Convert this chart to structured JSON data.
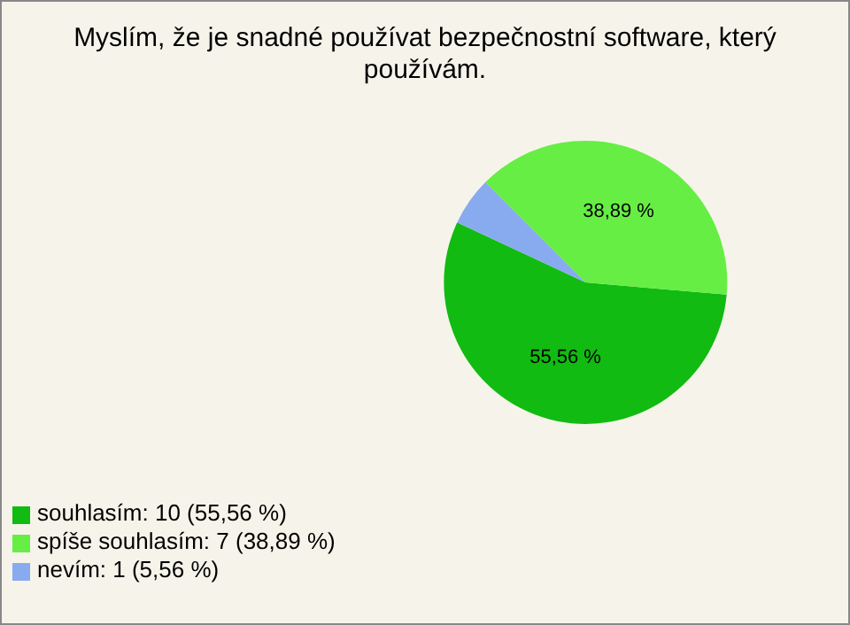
{
  "chart_data": {
    "type": "pie",
    "title": "Myslím, že je snadné používat bezpečnostní software, který používám.",
    "categories": [
      "souhlasím: 10 (55,56 %)",
      "spíše souhlasím: 7 (38,89 %)",
      "nevím: 1 (5,56 %)"
    ],
    "values": [
      55.56,
      38.89,
      5.56
    ],
    "colors": [
      "#11bb11",
      "#66ee44",
      "#88aaee"
    ],
    "value_labels": [
      "55,56 %",
      "38,89 %",
      null
    ],
    "legend": "bottom left"
  }
}
